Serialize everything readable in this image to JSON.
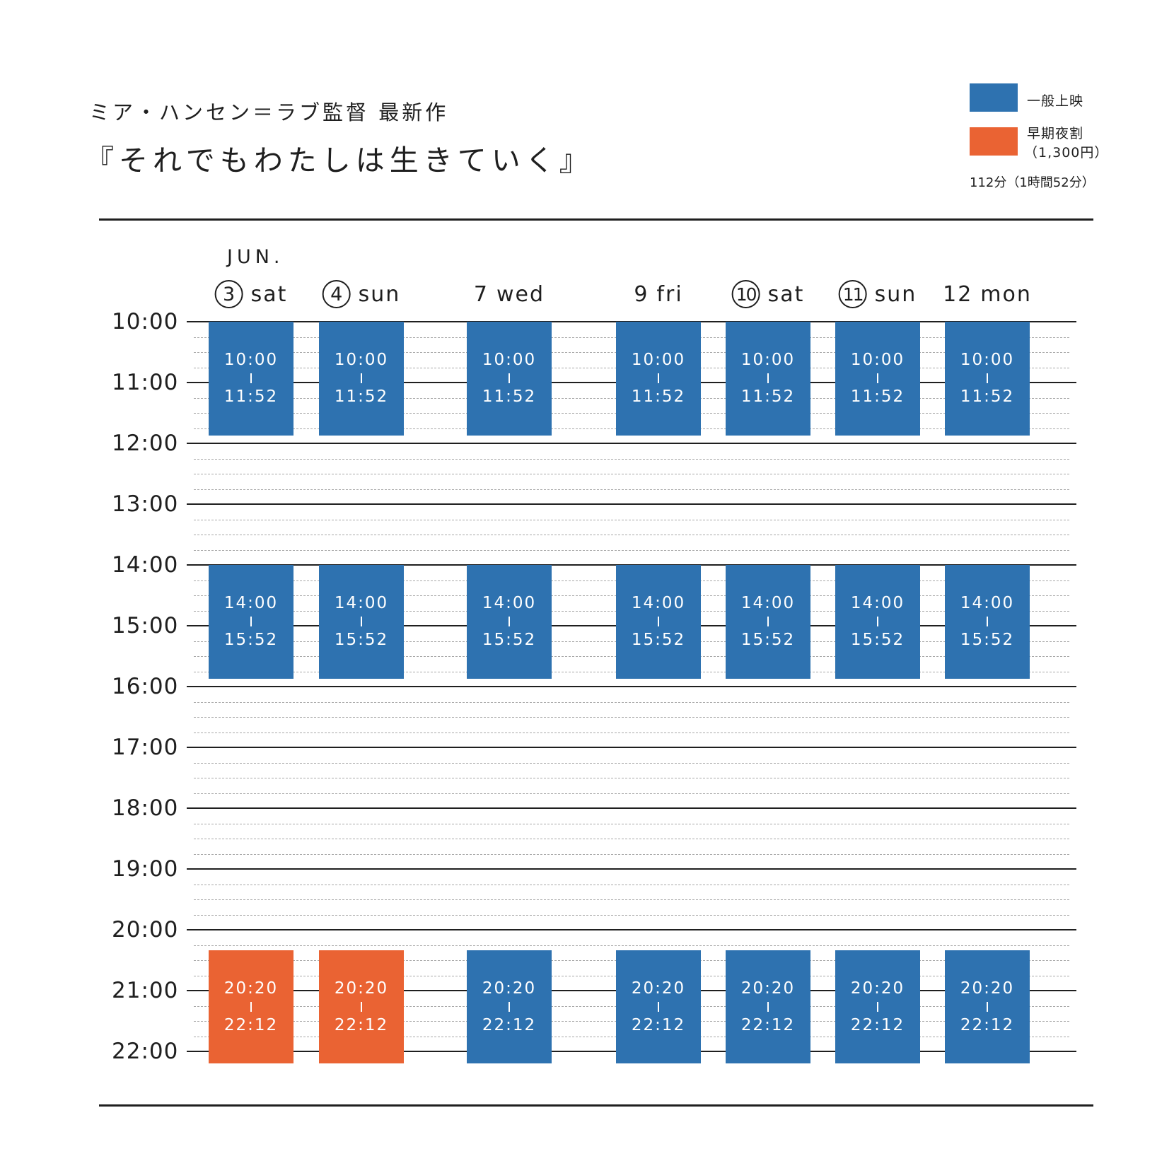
{
  "header": {
    "subtitle": "ミア・ハンセン＝ラブ監督 最新作",
    "title": "『それでもわたしは生きていく』"
  },
  "legend": {
    "general_label": "一般上映",
    "early_label": "早期夜割",
    "early_price": "（1,300円）",
    "runtime": "112分（1時間52分）",
    "colors": {
      "general": "#2e72b0",
      "early": "#ea6333"
    }
  },
  "schedule": {
    "month": "JUN.",
    "hours": [
      "10:00",
      "11:00",
      "12:00",
      "13:00",
      "14:00",
      "15:00",
      "16:00",
      "17:00",
      "18:00",
      "19:00",
      "20:00",
      "21:00",
      "22:00"
    ],
    "days": [
      {
        "num": "3",
        "dow": "sat",
        "circled": true,
        "shows": [
          {
            "start": "10:00",
            "end": "11:52",
            "type": "general"
          },
          {
            "start": "14:00",
            "end": "15:52",
            "type": "general"
          },
          {
            "start": "20:20",
            "end": "22:12",
            "type": "early"
          }
        ]
      },
      {
        "num": "4",
        "dow": "sun",
        "circled": true,
        "shows": [
          {
            "start": "10:00",
            "end": "11:52",
            "type": "general"
          },
          {
            "start": "14:00",
            "end": "15:52",
            "type": "general"
          },
          {
            "start": "20:20",
            "end": "22:12",
            "type": "early"
          }
        ]
      },
      {
        "num": "7",
        "dow": "wed",
        "circled": false,
        "shows": [
          {
            "start": "10:00",
            "end": "11:52",
            "type": "general"
          },
          {
            "start": "14:00",
            "end": "15:52",
            "type": "general"
          },
          {
            "start": "20:20",
            "end": "22:12",
            "type": "general"
          }
        ]
      },
      {
        "num": "9",
        "dow": "fri",
        "circled": false,
        "shows": [
          {
            "start": "10:00",
            "end": "11:52",
            "type": "general"
          },
          {
            "start": "14:00",
            "end": "15:52",
            "type": "general"
          },
          {
            "start": "20:20",
            "end": "22:12",
            "type": "general"
          }
        ]
      },
      {
        "num": "10",
        "dow": "sat",
        "circled": true,
        "shows": [
          {
            "start": "10:00",
            "end": "11:52",
            "type": "general"
          },
          {
            "start": "14:00",
            "end": "15:52",
            "type": "general"
          },
          {
            "start": "20:20",
            "end": "22:12",
            "type": "general"
          }
        ]
      },
      {
        "num": "11",
        "dow": "sun",
        "circled": true,
        "shows": [
          {
            "start": "10:00",
            "end": "11:52",
            "type": "general"
          },
          {
            "start": "14:00",
            "end": "15:52",
            "type": "general"
          },
          {
            "start": "20:20",
            "end": "22:12",
            "type": "general"
          }
        ]
      },
      {
        "num": "12",
        "dow": "mon",
        "circled": false,
        "shows": [
          {
            "start": "10:00",
            "end": "11:52",
            "type": "general"
          },
          {
            "start": "14:00",
            "end": "15:52",
            "type": "general"
          },
          {
            "start": "20:20",
            "end": "22:12",
            "type": "general"
          }
        ]
      }
    ]
  }
}
